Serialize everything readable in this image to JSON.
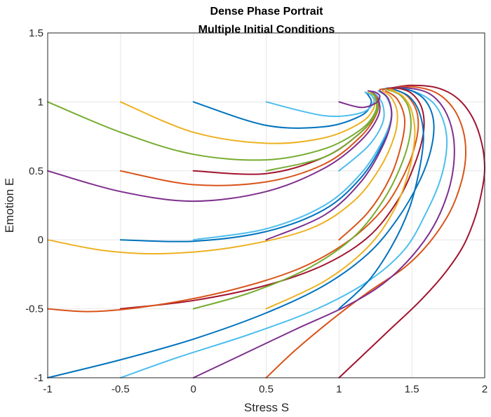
{
  "chart_data": {
    "type": "line",
    "title": "Dense Phase Portrait",
    "subtitle": "Multiple Initial Conditions",
    "xlabel": "Stress S",
    "ylabel": "Emotion E",
    "xlim": [
      -1,
      2
    ],
    "ylim": [
      -1,
      1.5
    ],
    "xticks": [
      -1,
      -0.5,
      0,
      0.5,
      1,
      1.5,
      2
    ],
    "yticks": [
      -1,
      -0.5,
      0,
      0.5,
      1,
      1.5
    ],
    "xtick_labels": [
      "-1",
      "-0.5",
      "0",
      "0.5",
      "1",
      "1.5",
      "2"
    ],
    "ytick_labels": [
      "-1",
      "-0.5",
      "0",
      "0.5",
      "1",
      "1.5"
    ],
    "grid": true,
    "box": true,
    "series": [
      {
        "color": "#A2142F",
        "points": [
          [
            1,
            -1
          ],
          [
            1.15,
            -0.85
          ],
          [
            1.35,
            -0.65
          ],
          [
            1.55,
            -0.45
          ],
          [
            1.72,
            -0.25
          ],
          [
            1.85,
            -0.05
          ],
          [
            1.93,
            0.15
          ],
          [
            1.98,
            0.35
          ],
          [
            2.0,
            0.52
          ],
          [
            1.98,
            0.7
          ],
          [
            1.92,
            0.88
          ],
          [
            1.82,
            1.02
          ],
          [
            1.68,
            1.1
          ],
          [
            1.5,
            1.12
          ],
          [
            1.35,
            1.1
          ]
        ]
      },
      {
        "color": "#D95319",
        "points": [
          [
            0.5,
            -1
          ],
          [
            0.7,
            -0.8
          ],
          [
            0.95,
            -0.58
          ],
          [
            1.2,
            -0.38
          ],
          [
            1.45,
            -0.2
          ],
          [
            1.62,
            -0.02
          ],
          [
            1.76,
            0.2
          ],
          [
            1.84,
            0.42
          ],
          [
            1.87,
            0.62
          ],
          [
            1.85,
            0.8
          ],
          [
            1.78,
            0.96
          ],
          [
            1.66,
            1.07
          ],
          [
            1.5,
            1.11
          ],
          [
            1.35,
            1.1
          ]
        ]
      },
      {
        "color": "#7E2F8E",
        "points": [
          [
            0,
            -1
          ],
          [
            0.3,
            -0.85
          ],
          [
            0.7,
            -0.65
          ],
          [
            1.05,
            -0.48
          ],
          [
            1.3,
            -0.32
          ],
          [
            1.5,
            -0.12
          ],
          [
            1.65,
            0.1
          ],
          [
            1.75,
            0.35
          ],
          [
            1.79,
            0.58
          ],
          [
            1.78,
            0.78
          ],
          [
            1.72,
            0.95
          ],
          [
            1.62,
            1.06
          ],
          [
            1.48,
            1.1
          ],
          [
            1.33,
            1.1
          ]
        ]
      },
      {
        "color": "#4DBEEE",
        "points": [
          [
            -0.5,
            -1
          ],
          [
            -0.1,
            -0.85
          ],
          [
            0.4,
            -0.68
          ],
          [
            0.85,
            -0.5
          ],
          [
            1.2,
            -0.3
          ],
          [
            1.45,
            -0.07
          ],
          [
            1.6,
            0.2
          ],
          [
            1.7,
            0.45
          ],
          [
            1.74,
            0.68
          ],
          [
            1.72,
            0.85
          ],
          [
            1.65,
            0.99
          ],
          [
            1.53,
            1.07
          ],
          [
            1.4,
            1.1
          ],
          [
            1.3,
            1.09
          ]
        ]
      },
      {
        "color": "#0072BD",
        "points": [
          [
            -1,
            -1
          ],
          [
            -0.5,
            -0.87
          ],
          [
            0,
            -0.72
          ],
          [
            0.5,
            -0.53
          ],
          [
            0.9,
            -0.33
          ],
          [
            1.2,
            -0.1
          ],
          [
            1.4,
            0.15
          ],
          [
            1.55,
            0.42
          ],
          [
            1.63,
            0.65
          ],
          [
            1.65,
            0.85
          ],
          [
            1.6,
            1.0
          ],
          [
            1.5,
            1.08
          ],
          [
            1.38,
            1.1
          ],
          [
            1.28,
            1.09
          ]
        ]
      },
      {
        "color": "#A2142F",
        "points": [
          [
            -0.5,
            -0.5
          ],
          [
            0,
            -0.44
          ],
          [
            0.5,
            -0.33
          ],
          [
            0.9,
            -0.18
          ],
          [
            1.2,
            0.02
          ],
          [
            1.4,
            0.28
          ],
          [
            1.52,
            0.55
          ],
          [
            1.58,
            0.78
          ],
          [
            1.57,
            0.95
          ],
          [
            1.5,
            1.06
          ],
          [
            1.4,
            1.1
          ],
          [
            1.3,
            1.09
          ]
        ]
      },
      {
        "color": "#D95319",
        "points": [
          [
            -1,
            -0.5
          ],
          [
            -0.7,
            -0.52
          ],
          [
            -0.3,
            -0.48
          ],
          [
            0.2,
            -0.38
          ],
          [
            0.7,
            -0.22
          ],
          [
            1.05,
            -0.02
          ],
          [
            1.3,
            0.22
          ],
          [
            1.45,
            0.48
          ],
          [
            1.53,
            0.72
          ],
          [
            1.54,
            0.9
          ],
          [
            1.48,
            1.03
          ],
          [
            1.38,
            1.09
          ],
          [
            1.28,
            1.09
          ]
        ]
      },
      {
        "color": "#77AC30",
        "points": [
          [
            0,
            -0.5
          ],
          [
            0.4,
            -0.38
          ],
          [
            0.8,
            -0.2
          ],
          [
            1.1,
            0.02
          ],
          [
            1.3,
            0.28
          ],
          [
            1.43,
            0.55
          ],
          [
            1.49,
            0.78
          ],
          [
            1.48,
            0.95
          ],
          [
            1.42,
            1.05
          ],
          [
            1.33,
            1.09
          ]
        ]
      },
      {
        "color": "#EDB120",
        "points": [
          [
            0.5,
            -0.5
          ],
          [
            0.9,
            -0.3
          ],
          [
            1.2,
            -0.05
          ],
          [
            1.38,
            0.22
          ],
          [
            1.48,
            0.5
          ],
          [
            1.52,
            0.75
          ],
          [
            1.5,
            0.93
          ],
          [
            1.44,
            1.04
          ],
          [
            1.35,
            1.09
          ]
        ]
      },
      {
        "color": "#0072BD",
        "points": [
          [
            1,
            -0.5
          ],
          [
            1.2,
            -0.3
          ],
          [
            1.36,
            -0.05
          ],
          [
            1.48,
            0.22
          ],
          [
            1.55,
            0.5
          ],
          [
            1.58,
            0.75
          ],
          [
            1.55,
            0.93
          ],
          [
            1.48,
            1.04
          ],
          [
            1.38,
            1.09
          ]
        ]
      },
      {
        "color": "#EDB120",
        "points": [
          [
            -1,
            0
          ],
          [
            -0.6,
            -0.08
          ],
          [
            -0.2,
            -0.1
          ],
          [
            0.3,
            -0.05
          ],
          [
            0.8,
            0.08
          ],
          [
            1.1,
            0.28
          ],
          [
            1.28,
            0.52
          ],
          [
            1.38,
            0.75
          ],
          [
            1.4,
            0.92
          ],
          [
            1.36,
            1.03
          ],
          [
            1.3,
            1.08
          ]
        ]
      },
      {
        "color": "#0072BD",
        "points": [
          [
            -0.5,
            0
          ],
          [
            0,
            -0.01
          ],
          [
            0.5,
            0.06
          ],
          [
            0.9,
            0.22
          ],
          [
            1.15,
            0.45
          ],
          [
            1.3,
            0.7
          ],
          [
            1.36,
            0.9
          ],
          [
            1.33,
            1.03
          ],
          [
            1.27,
            1.08
          ]
        ]
      },
      {
        "color": "#4DBEEE",
        "points": [
          [
            0,
            0
          ],
          [
            0.5,
            0.08
          ],
          [
            0.9,
            0.25
          ],
          [
            1.15,
            0.48
          ],
          [
            1.3,
            0.72
          ],
          [
            1.36,
            0.9
          ],
          [
            1.33,
            1.03
          ],
          [
            1.27,
            1.08
          ]
        ]
      },
      {
        "color": "#7E2F8E",
        "points": [
          [
            0.5,
            0
          ],
          [
            0.9,
            0.18
          ],
          [
            1.15,
            0.42
          ],
          [
            1.3,
            0.68
          ],
          [
            1.36,
            0.88
          ],
          [
            1.34,
            1.02
          ],
          [
            1.28,
            1.08
          ]
        ]
      },
      {
        "color": "#D95319",
        "points": [
          [
            1,
            0
          ],
          [
            1.2,
            0.2
          ],
          [
            1.35,
            0.45
          ],
          [
            1.43,
            0.7
          ],
          [
            1.45,
            0.88
          ],
          [
            1.4,
            1.02
          ],
          [
            1.32,
            1.08
          ]
        ]
      },
      {
        "color": "#7E2F8E",
        "points": [
          [
            -1,
            0.5
          ],
          [
            -0.5,
            0.35
          ],
          [
            0,
            0.28
          ],
          [
            0.5,
            0.35
          ],
          [
            0.9,
            0.52
          ],
          [
            1.15,
            0.72
          ],
          [
            1.27,
            0.9
          ],
          [
            1.27,
            1.02
          ],
          [
            1.23,
            1.07
          ]
        ]
      },
      {
        "color": "#D95319",
        "points": [
          [
            -0.5,
            0.5
          ],
          [
            0,
            0.4
          ],
          [
            0.5,
            0.42
          ],
          [
            0.9,
            0.55
          ],
          [
            1.15,
            0.75
          ],
          [
            1.26,
            0.92
          ],
          [
            1.26,
            1.03
          ],
          [
            1.22,
            1.07
          ]
        ]
      },
      {
        "color": "#A2142F",
        "points": [
          [
            0,
            0.5
          ],
          [
            0.5,
            0.48
          ],
          [
            0.9,
            0.6
          ],
          [
            1.15,
            0.78
          ],
          [
            1.26,
            0.93
          ],
          [
            1.25,
            1.03
          ],
          [
            1.22,
            1.07
          ]
        ]
      },
      {
        "color": "#77AC30",
        "points": [
          [
            0.5,
            0.5
          ],
          [
            0.9,
            0.6
          ],
          [
            1.15,
            0.78
          ],
          [
            1.26,
            0.93
          ],
          [
            1.25,
            1.03
          ],
          [
            1.22,
            1.07
          ]
        ]
      },
      {
        "color": "#4DBEEE",
        "points": [
          [
            1,
            0.5
          ],
          [
            1.2,
            0.68
          ],
          [
            1.3,
            0.85
          ],
          [
            1.3,
            0.98
          ],
          [
            1.25,
            1.06
          ]
        ]
      },
      {
        "color": "#77AC30",
        "points": [
          [
            -1,
            1
          ],
          [
            -0.5,
            0.78
          ],
          [
            0,
            0.62
          ],
          [
            0.5,
            0.58
          ],
          [
            0.9,
            0.66
          ],
          [
            1.15,
            0.8
          ],
          [
            1.25,
            0.93
          ],
          [
            1.25,
            1.03
          ],
          [
            1.22,
            1.07
          ]
        ]
      },
      {
        "color": "#EDB120",
        "points": [
          [
            -0.5,
            1
          ],
          [
            0,
            0.78
          ],
          [
            0.5,
            0.7
          ],
          [
            0.9,
            0.74
          ],
          [
            1.15,
            0.85
          ],
          [
            1.24,
            0.96
          ],
          [
            1.23,
            1.04
          ],
          [
            1.2,
            1.07
          ]
        ]
      },
      {
        "color": "#0072BD",
        "points": [
          [
            0,
            1
          ],
          [
            0.5,
            0.83
          ],
          [
            0.9,
            0.82
          ],
          [
            1.15,
            0.9
          ],
          [
            1.22,
            0.99
          ],
          [
            1.2,
            1.05
          ],
          [
            1.18,
            1.07
          ]
        ]
      },
      {
        "color": "#4DBEEE",
        "points": [
          [
            0.5,
            1
          ],
          [
            0.9,
            0.9
          ],
          [
            1.15,
            0.92
          ],
          [
            1.24,
            1.0
          ],
          [
            1.22,
            1.05
          ],
          [
            1.18,
            1.07
          ]
        ]
      },
      {
        "color": "#7E2F8E",
        "points": [
          [
            1,
            1
          ],
          [
            1.15,
            0.96
          ],
          [
            1.25,
            0.99
          ],
          [
            1.28,
            1.04
          ],
          [
            1.25,
            1.07
          ],
          [
            1.2,
            1.08
          ]
        ]
      }
    ]
  }
}
